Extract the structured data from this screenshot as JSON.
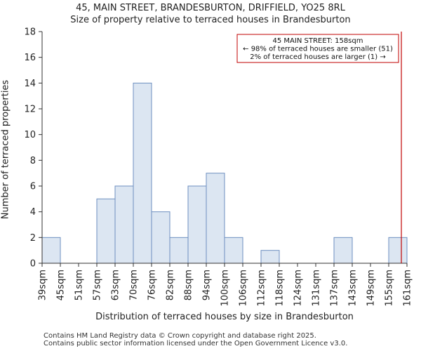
{
  "title": {
    "line1": "45, MAIN STREET, BRANDESBURTON, DRIFFIELD, YO25 8RL",
    "line2": "Size of property relative to terraced houses in Brandesburton"
  },
  "footer": {
    "line1": "Contains HM Land Registry data © Crown copyright and database right 2025.",
    "line2": "Contains public sector information licensed under the Open Government Licence v3.0."
  },
  "colors": {
    "bar_fill": "#dce6f2",
    "bar_stroke": "#6e8fc0",
    "marker": "#c00000",
    "annotation_border": "#c00000"
  },
  "chart_data": {
    "type": "bar",
    "title": "Size of property relative to terraced houses in Brandesburton",
    "xlabel": "Distribution of terraced houses by size in Brandesburton",
    "ylabel": "Number of terraced properties",
    "bin_edges": [
      "39sqm",
      "45sqm",
      "51sqm",
      "57sqm",
      "63sqm",
      "70sqm",
      "76sqm",
      "82sqm",
      "88sqm",
      "94sqm",
      "100sqm",
      "106sqm",
      "112sqm",
      "118sqm",
      "124sqm",
      "131sqm",
      "137sqm",
      "143sqm",
      "149sqm",
      "155sqm",
      "161sqm"
    ],
    "values": [
      2,
      0,
      0,
      5,
      6,
      14,
      4,
      2,
      6,
      7,
      2,
      0,
      1,
      0,
      0,
      0,
      2,
      0,
      0,
      2
    ],
    "ylim": [
      0,
      18
    ],
    "yticks": [
      0,
      2,
      4,
      6,
      8,
      10,
      12,
      14,
      16,
      18
    ],
    "grid": false,
    "marker": {
      "value_sqm": 158,
      "position_bins": 19.5
    },
    "annotation": {
      "line1": "45 MAIN STREET: 158sqm",
      "line2": "← 98% of terraced houses are smaller (51)",
      "line3": "2% of terraced houses are larger (1) →"
    }
  }
}
